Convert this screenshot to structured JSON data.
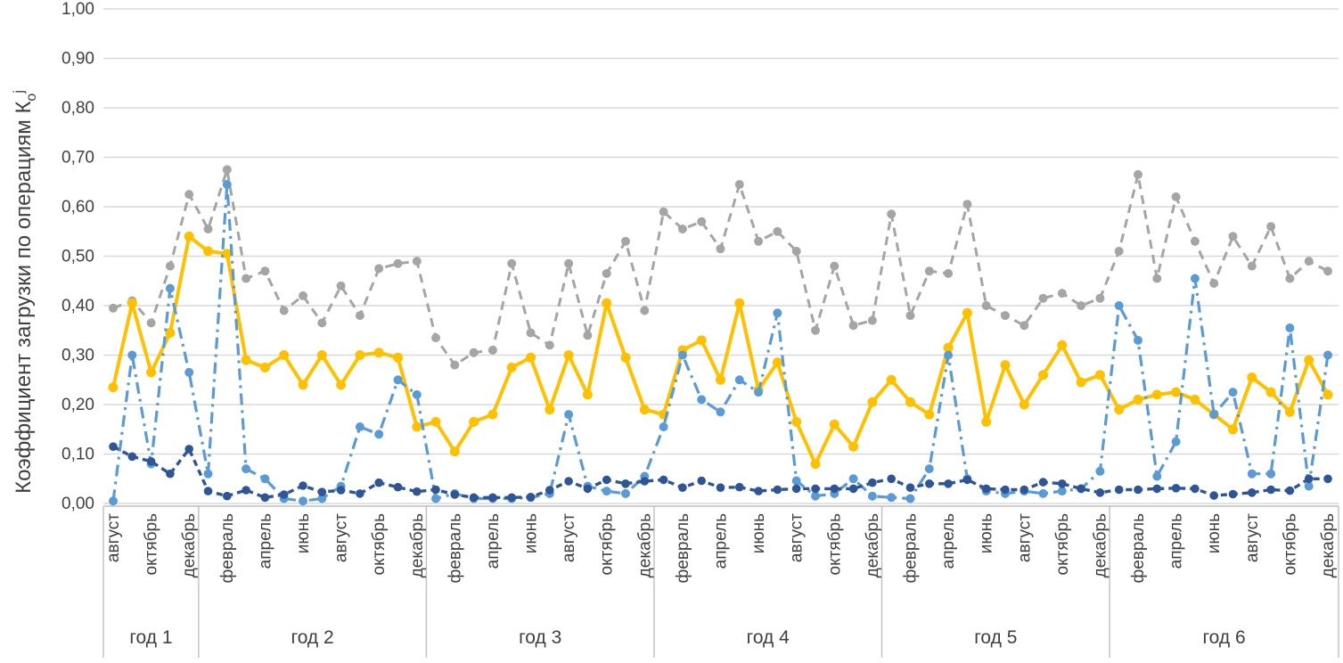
{
  "chart_data": {
    "type": "line",
    "title": "",
    "legend": "none",
    "grid": true,
    "background": "#ffffff",
    "gridline_color": "#d9d9d9",
    "axis_line_color": "#bfbfbf",
    "text_color": "#404040",
    "ylabel_parts": {
      "main": "Коэффициент загрузки по операциям К",
      "sub": "о",
      "sup": "j"
    },
    "ylim": [
      0,
      1.0
    ],
    "ytick_step": 0.1,
    "y_tick_labels": [
      "0,00",
      "0,10",
      "0,20",
      "0,30",
      "0,40",
      "0,50",
      "0,60",
      "0,70",
      "0,80",
      "0,90",
      "1,00"
    ],
    "x_axis": {
      "year_bands": [
        {
          "label": "год 1",
          "months": 5,
          "ticks": [
            {
              "i": 0,
              "label": "август"
            },
            {
              "i": 2,
              "label": "октябрь"
            },
            {
              "i": 4,
              "label": "декабрь"
            }
          ]
        },
        {
          "label": "год 2",
          "months": 12,
          "ticks": [
            {
              "i": 1,
              "label": "февраль"
            },
            {
              "i": 3,
              "label": "апрель"
            },
            {
              "i": 5,
              "label": "июнь"
            },
            {
              "i": 7,
              "label": "август"
            },
            {
              "i": 9,
              "label": "октябрь"
            },
            {
              "i": 11,
              "label": "декабрь"
            }
          ]
        },
        {
          "label": "год 3",
          "months": 12,
          "ticks": [
            {
              "i": 1,
              "label": "февраль"
            },
            {
              "i": 3,
              "label": "апрель"
            },
            {
              "i": 5,
              "label": "июнь"
            },
            {
              "i": 7,
              "label": "август"
            },
            {
              "i": 9,
              "label": "октябрь"
            },
            {
              "i": 11,
              "label": "декабрь"
            }
          ]
        },
        {
          "label": "год 4",
          "months": 12,
          "ticks": [
            {
              "i": 1,
              "label": "февраль"
            },
            {
              "i": 3,
              "label": "апрель"
            },
            {
              "i": 5,
              "label": "июнь"
            },
            {
              "i": 7,
              "label": "август"
            },
            {
              "i": 9,
              "label": "октябрь"
            },
            {
              "i": 11,
              "label": "декабрь"
            }
          ]
        },
        {
          "label": "год 5",
          "months": 12,
          "ticks": [
            {
              "i": 1,
              "label": "февраль"
            },
            {
              "i": 3,
              "label": "апрель"
            },
            {
              "i": 5,
              "label": "июнь"
            },
            {
              "i": 7,
              "label": "август"
            },
            {
              "i": 9,
              "label": "октябрь"
            },
            {
              "i": 11,
              "label": "декабрь"
            }
          ]
        },
        {
          "label": "год 6",
          "months": 12,
          "ticks": [
            {
              "i": 1,
              "label": "февраль"
            },
            {
              "i": 3,
              "label": "апрель"
            },
            {
              "i": 5,
              "label": "июнь"
            },
            {
              "i": 7,
              "label": "август"
            },
            {
              "i": 9,
              "label": "октябрь"
            },
            {
              "i": 11,
              "label": "декабрь"
            }
          ]
        }
      ]
    },
    "series": [
      {
        "id": "series-gray-dashed",
        "color": "#a5a5a5",
        "dash": "10 7",
        "width": 3,
        "marker_r": 5,
        "values": [
          0.395,
          0.41,
          0.365,
          0.48,
          0.625,
          0.555,
          0.675,
          0.455,
          0.47,
          0.39,
          0.42,
          0.365,
          0.44,
          0.38,
          0.475,
          0.485,
          0.49,
          0.335,
          0.28,
          0.305,
          0.31,
          0.485,
          0.345,
          0.32,
          0.485,
          0.34,
          0.465,
          0.53,
          0.39,
          0.59,
          0.555,
          0.57,
          0.515,
          0.645,
          0.53,
          0.55,
          0.51,
          0.35,
          0.48,
          0.36,
          0.37,
          0.585,
          0.38,
          0.47,
          0.465,
          0.605,
          0.4,
          0.38,
          0.36,
          0.415,
          0.425,
          0.4,
          0.415,
          0.51,
          0.665,
          0.455,
          0.62,
          0.53,
          0.445,
          0.54,
          0.48,
          0.56,
          0.455,
          0.49,
          0.47
        ]
      },
      {
        "id": "series-gold-solid",
        "color": "#ffc000",
        "dash": "",
        "width": 4,
        "marker_r": 5.5,
        "values": [
          0.235,
          0.405,
          0.265,
          0.345,
          0.54,
          0.51,
          0.505,
          0.29,
          0.275,
          0.3,
          0.24,
          0.3,
          0.24,
          0.3,
          0.305,
          0.295,
          0.155,
          0.165,
          0.105,
          0.165,
          0.18,
          0.275,
          0.295,
          0.19,
          0.3,
          0.22,
          0.405,
          0.295,
          0.19,
          0.18,
          0.31,
          0.33,
          0.25,
          0.405,
          0.23,
          0.285,
          0.165,
          0.08,
          0.16,
          0.115,
          0.205,
          0.25,
          0.205,
          0.18,
          0.315,
          0.385,
          0.165,
          0.28,
          0.2,
          0.26,
          0.32,
          0.245,
          0.26,
          0.19,
          0.21,
          0.22,
          0.225,
          0.21,
          0.18,
          0.15,
          0.255,
          0.225,
          0.185,
          0.29,
          0.22
        ]
      },
      {
        "id": "series-lightblue-dashdot",
        "color": "#5b9bd5",
        "dash": "13 6 3 6",
        "width": 3.2,
        "marker_r": 5,
        "values": [
          0.005,
          0.3,
          0.08,
          0.435,
          0.265,
          0.06,
          0.645,
          0.07,
          0.05,
          0.01,
          0.005,
          0.01,
          0.035,
          0.155,
          0.14,
          0.25,
          0.22,
          0.01,
          0.02,
          0.01,
          0.01,
          0.01,
          0.012,
          0.02,
          0.18,
          0.035,
          0.025,
          0.02,
          0.055,
          0.155,
          0.3,
          0.21,
          0.185,
          0.25,
          0.225,
          0.385,
          0.046,
          0.015,
          0.02,
          0.05,
          0.015,
          0.012,
          0.01,
          0.07,
          0.3,
          0.05,
          0.025,
          0.02,
          0.025,
          0.02,
          0.025,
          0.03,
          0.065,
          0.4,
          0.33,
          0.055,
          0.125,
          0.455,
          0.18,
          0.225,
          0.06,
          0.06,
          0.355,
          0.035,
          0.3
        ]
      },
      {
        "id": "series-darkblue-dashed",
        "color": "#2f5597",
        "dash": "7 5",
        "width": 3.4,
        "marker_r": 4.8,
        "values": [
          0.115,
          0.095,
          0.085,
          0.06,
          0.11,
          0.025,
          0.015,
          0.027,
          0.012,
          0.018,
          0.036,
          0.023,
          0.027,
          0.02,
          0.042,
          0.033,
          0.024,
          0.028,
          0.018,
          0.012,
          0.012,
          0.012,
          0.013,
          0.027,
          0.045,
          0.03,
          0.048,
          0.04,
          0.045,
          0.048,
          0.032,
          0.046,
          0.032,
          0.033,
          0.025,
          0.028,
          0.03,
          0.03,
          0.03,
          0.03,
          0.042,
          0.05,
          0.032,
          0.04,
          0.04,
          0.048,
          0.03,
          0.028,
          0.028,
          0.043,
          0.04,
          0.03,
          0.022,
          0.028,
          0.028,
          0.03,
          0.031,
          0.03,
          0.016,
          0.019,
          0.022,
          0.028,
          0.026,
          0.05,
          0.05
        ]
      }
    ]
  }
}
